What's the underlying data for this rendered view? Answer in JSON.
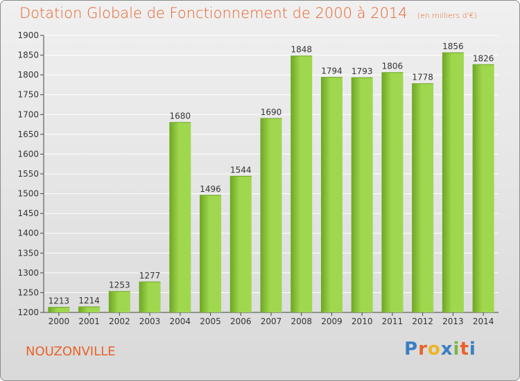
{
  "header": {
    "title": "Dotation Globale de Fonctionnement de 2000 à 2014",
    "unit": "(en milliers d'€)"
  },
  "footer": {
    "town": "NOUZONVILLE",
    "logo": [
      "P",
      "r",
      "o",
      "x",
      "i",
      "t",
      "i"
    ]
  },
  "colors": {
    "bar_light": "#9fd84e",
    "bar_dark": "#6ea524",
    "title": "#e8622a",
    "grid": "#ffffff",
    "logo": [
      "#3a7fc1",
      "#e8622a",
      "#f0b323",
      "#3a7fc1",
      "#7ab648",
      "#e8622a",
      "#3a7fc1"
    ]
  },
  "chart_data": {
    "type": "bar",
    "categories": [
      "2000",
      "2001",
      "2002",
      "2003",
      "2004",
      "2005",
      "2006",
      "2007",
      "2008",
      "2009",
      "2010",
      "2011",
      "2012",
      "2013",
      "2014"
    ],
    "values": [
      1213,
      1214,
      1253,
      1277,
      1680,
      1496,
      1544,
      1690,
      1848,
      1794,
      1793,
      1806,
      1778,
      1856,
      1826
    ],
    "ylim": [
      1200,
      1900
    ],
    "yticks": [
      1200,
      1250,
      1300,
      1350,
      1400,
      1450,
      1500,
      1550,
      1600,
      1650,
      1700,
      1750,
      1800,
      1850,
      1900
    ],
    "grid": true
  }
}
